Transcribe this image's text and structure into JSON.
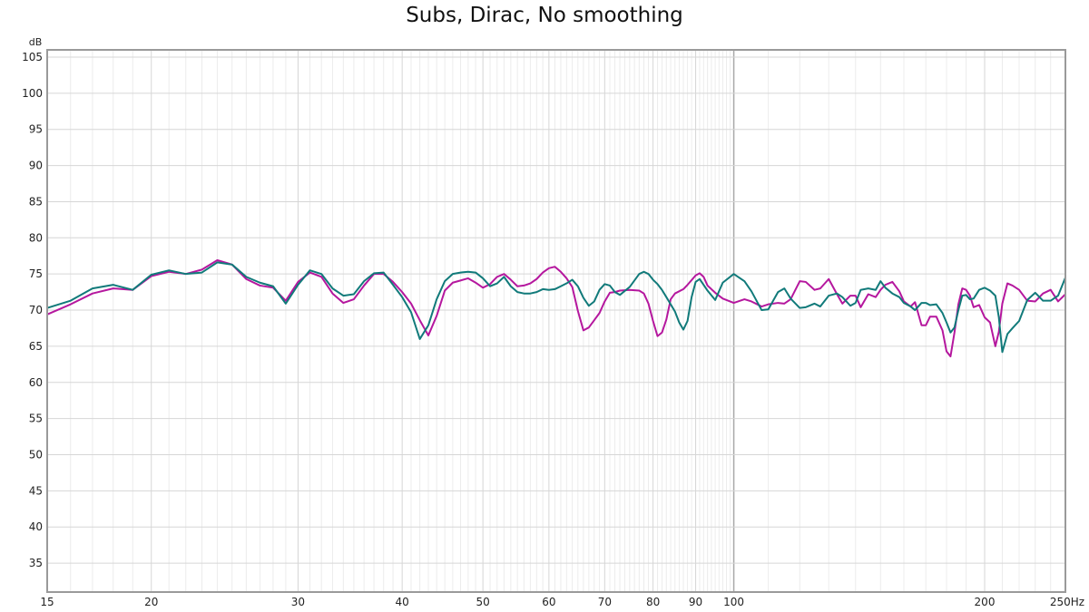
{
  "chart_data": {
    "type": "line",
    "title": "Subs, Dirac, No smoothing",
    "ylabel": "dB",
    "xlabel": "Hz",
    "x_scale": "log",
    "xlim": [
      15,
      250
    ],
    "ylim": [
      31,
      106
    ],
    "grid": true,
    "y_ticks": [
      35,
      40,
      45,
      50,
      55,
      60,
      65,
      70,
      75,
      80,
      85,
      90,
      95,
      100,
      105
    ],
    "x_ticks": [
      15,
      20,
      30,
      40,
      50,
      60,
      70,
      80,
      90,
      100,
      200,
      250
    ],
    "x_tick_labels": [
      "15",
      "20",
      "30",
      "40",
      "50",
      "60",
      "70",
      "80",
      "90",
      "100",
      "200",
      "250Hz"
    ],
    "colors": {
      "magenta": "#b5179e",
      "teal": "#117a7a",
      "grid": "#d6d6d6",
      "grid_major": "#a8a8a8",
      "axis": "#9a9a9a"
    },
    "series": [
      {
        "color": "#b5179e",
        "points": [
          [
            15,
            69.4
          ],
          [
            16,
            70.8
          ],
          [
            17,
            72.3
          ],
          [
            18,
            73.0
          ],
          [
            19,
            72.8
          ],
          [
            20,
            74.7
          ],
          [
            21,
            75.3
          ],
          [
            22,
            75.0
          ],
          [
            23,
            75.6
          ],
          [
            24,
            76.9
          ],
          [
            25,
            76.3
          ],
          [
            26,
            74.3
          ],
          [
            27,
            73.4
          ],
          [
            28,
            73.1
          ],
          [
            29,
            71.3
          ],
          [
            30,
            73.9
          ],
          [
            31,
            75.2
          ],
          [
            32,
            74.6
          ],
          [
            33,
            72.3
          ],
          [
            34,
            71.0
          ],
          [
            35,
            71.5
          ],
          [
            36,
            73.4
          ],
          [
            37,
            75.0
          ],
          [
            38,
            75.0
          ],
          [
            39,
            73.9
          ],
          [
            40,
            72.5
          ],
          [
            41,
            70.9
          ],
          [
            42,
            68.6
          ],
          [
            43,
            66.5
          ],
          [
            44,
            69.2
          ],
          [
            45,
            72.7
          ],
          [
            46,
            73.8
          ],
          [
            47,
            74.1
          ],
          [
            48,
            74.4
          ],
          [
            49,
            73.8
          ],
          [
            50,
            73.1
          ],
          [
            51,
            73.6
          ],
          [
            52,
            74.6
          ],
          [
            53,
            75.0
          ],
          [
            54,
            74.2
          ],
          [
            55,
            73.3
          ],
          [
            56,
            73.4
          ],
          [
            57,
            73.7
          ],
          [
            58,
            74.3
          ],
          [
            59,
            75.2
          ],
          [
            60,
            75.8
          ],
          [
            61,
            76.0
          ],
          [
            62,
            75.3
          ],
          [
            63,
            74.4
          ],
          [
            64,
            73.2
          ],
          [
            65,
            69.9
          ],
          [
            66,
            67.2
          ],
          [
            67,
            67.6
          ],
          [
            68,
            68.6
          ],
          [
            69,
            69.6
          ],
          [
            70,
            71.2
          ],
          [
            71,
            72.4
          ],
          [
            72,
            72.5
          ],
          [
            73,
            72.7
          ],
          [
            75,
            72.8
          ],
          [
            77,
            72.7
          ],
          [
            78,
            72.3
          ],
          [
            79,
            70.9
          ],
          [
            80,
            68.5
          ],
          [
            81,
            66.4
          ],
          [
            82,
            66.9
          ],
          [
            83,
            68.7
          ],
          [
            84,
            71.5
          ],
          [
            85,
            72.3
          ],
          [
            87,
            72.9
          ],
          [
            88,
            73.5
          ],
          [
            90,
            74.8
          ],
          [
            91,
            75.1
          ],
          [
            92,
            74.6
          ],
          [
            93,
            73.4
          ],
          [
            95,
            72.4
          ],
          [
            97,
            71.6
          ],
          [
            100,
            71.0
          ],
          [
            103,
            71.5
          ],
          [
            105,
            71.2
          ],
          [
            108,
            70.5
          ],
          [
            110,
            70.8
          ],
          [
            113,
            71.0
          ],
          [
            115,
            70.9
          ],
          [
            117,
            71.5
          ],
          [
            120,
            74.0
          ],
          [
            122,
            73.9
          ],
          [
            125,
            72.8
          ],
          [
            127,
            73.0
          ],
          [
            130,
            74.3
          ],
          [
            133,
            72.2
          ],
          [
            135,
            70.9
          ],
          [
            138,
            72.0
          ],
          [
            140,
            72.0
          ],
          [
            142,
            70.4
          ],
          [
            145,
            72.2
          ],
          [
            148,
            71.8
          ],
          [
            150,
            72.8
          ],
          [
            152,
            73.5
          ],
          [
            155,
            73.9
          ],
          [
            158,
            72.6
          ],
          [
            160,
            71.2
          ],
          [
            163,
            70.5
          ],
          [
            165,
            71.1
          ],
          [
            168,
            67.9
          ],
          [
            170,
            67.9
          ],
          [
            172,
            69.1
          ],
          [
            175,
            69.1
          ],
          [
            178,
            67.2
          ],
          [
            180,
            64.3
          ],
          [
            182,
            63.6
          ],
          [
            184,
            66.9
          ],
          [
            186,
            70.8
          ],
          [
            188,
            73.0
          ],
          [
            190,
            72.8
          ],
          [
            192,
            72.0
          ],
          [
            194,
            70.4
          ],
          [
            197,
            70.7
          ],
          [
            200,
            69.0
          ],
          [
            203,
            68.3
          ],
          [
            206,
            65.0
          ],
          [
            208,
            67.0
          ],
          [
            210,
            70.9
          ],
          [
            213,
            73.7
          ],
          [
            216,
            73.4
          ],
          [
            220,
            72.8
          ],
          [
            225,
            71.3
          ],
          [
            230,
            71.2
          ],
          [
            235,
            72.3
          ],
          [
            240,
            72.8
          ],
          [
            245,
            71.2
          ],
          [
            250,
            72.2
          ]
        ]
      },
      {
        "color": "#117a7a",
        "points": [
          [
            15,
            70.3
          ],
          [
            16,
            71.3
          ],
          [
            17,
            73.0
          ],
          [
            18,
            73.5
          ],
          [
            19,
            72.8
          ],
          [
            20,
            74.9
          ],
          [
            21,
            75.5
          ],
          [
            22,
            75.0
          ],
          [
            23,
            75.2
          ],
          [
            24,
            76.6
          ],
          [
            25,
            76.3
          ],
          [
            26,
            74.6
          ],
          [
            27,
            73.8
          ],
          [
            28,
            73.3
          ],
          [
            29,
            70.9
          ],
          [
            30,
            73.5
          ],
          [
            31,
            75.5
          ],
          [
            32,
            75.0
          ],
          [
            33,
            73.0
          ],
          [
            34,
            72.0
          ],
          [
            35,
            72.2
          ],
          [
            36,
            74.0
          ],
          [
            37,
            75.1
          ],
          [
            38,
            75.2
          ],
          [
            39,
            73.5
          ],
          [
            40,
            71.8
          ],
          [
            41,
            69.7
          ],
          [
            42,
            66.0
          ],
          [
            43,
            67.9
          ],
          [
            44,
            71.5
          ],
          [
            45,
            74.0
          ],
          [
            46,
            75.0
          ],
          [
            47,
            75.2
          ],
          [
            48,
            75.3
          ],
          [
            49,
            75.2
          ],
          [
            50,
            74.4
          ],
          [
            51,
            73.3
          ],
          [
            52,
            73.7
          ],
          [
            53,
            74.6
          ],
          [
            54,
            73.3
          ],
          [
            55,
            72.5
          ],
          [
            56,
            72.3
          ],
          [
            57,
            72.3
          ],
          [
            58,
            72.5
          ],
          [
            59,
            72.9
          ],
          [
            60,
            72.8
          ],
          [
            61,
            72.9
          ],
          [
            62,
            73.3
          ],
          [
            63,
            73.7
          ],
          [
            64,
            74.2
          ],
          [
            65,
            73.3
          ],
          [
            66,
            71.7
          ],
          [
            67,
            70.6
          ],
          [
            68,
            71.2
          ],
          [
            69,
            72.8
          ],
          [
            70,
            73.6
          ],
          [
            71,
            73.4
          ],
          [
            72,
            72.5
          ],
          [
            73,
            72.1
          ],
          [
            75,
            73.2
          ],
          [
            77,
            75.0
          ],
          [
            78,
            75.3
          ],
          [
            79,
            75.0
          ],
          [
            80,
            74.2
          ],
          [
            81,
            73.6
          ],
          [
            82,
            72.8
          ],
          [
            83,
            71.8
          ],
          [
            84,
            70.8
          ],
          [
            85,
            69.8
          ],
          [
            86,
            68.3
          ],
          [
            87,
            67.3
          ],
          [
            88,
            68.5
          ],
          [
            89,
            71.8
          ],
          [
            90,
            73.9
          ],
          [
            91,
            74.3
          ],
          [
            92,
            73.5
          ],
          [
            93,
            72.7
          ],
          [
            95,
            71.4
          ],
          [
            97,
            73.8
          ],
          [
            100,
            75.0
          ],
          [
            103,
            74.0
          ],
          [
            105,
            72.6
          ],
          [
            108,
            70.0
          ],
          [
            110,
            70.1
          ],
          [
            113,
            72.5
          ],
          [
            115,
            73.0
          ],
          [
            117,
            71.6
          ],
          [
            120,
            70.3
          ],
          [
            122,
            70.4
          ],
          [
            125,
            70.9
          ],
          [
            127,
            70.5
          ],
          [
            130,
            72.0
          ],
          [
            133,
            72.3
          ],
          [
            135,
            71.8
          ],
          [
            138,
            70.6
          ],
          [
            140,
            71.0
          ],
          [
            142,
            72.8
          ],
          [
            145,
            73.0
          ],
          [
            148,
            72.8
          ],
          [
            150,
            74.0
          ],
          [
            152,
            73.1
          ],
          [
            155,
            72.3
          ],
          [
            158,
            71.8
          ],
          [
            160,
            71.0
          ],
          [
            163,
            70.5
          ],
          [
            165,
            70.0
          ],
          [
            168,
            71.0
          ],
          [
            170,
            71.0
          ],
          [
            172,
            70.7
          ],
          [
            175,
            70.8
          ],
          [
            178,
            69.6
          ],
          [
            180,
            68.3
          ],
          [
            182,
            66.9
          ],
          [
            184,
            67.6
          ],
          [
            186,
            70.0
          ],
          [
            188,
            72.0
          ],
          [
            190,
            72.1
          ],
          [
            192,
            71.5
          ],
          [
            194,
            71.6
          ],
          [
            197,
            72.8
          ],
          [
            200,
            73.1
          ],
          [
            203,
            72.7
          ],
          [
            206,
            72.0
          ],
          [
            208,
            69.0
          ],
          [
            210,
            64.2
          ],
          [
            213,
            66.7
          ],
          [
            216,
            67.5
          ],
          [
            220,
            68.5
          ],
          [
            225,
            71.4
          ],
          [
            230,
            72.4
          ],
          [
            235,
            71.3
          ],
          [
            240,
            71.3
          ],
          [
            245,
            72.0
          ],
          [
            250,
            74.5
          ]
        ]
      }
    ]
  }
}
